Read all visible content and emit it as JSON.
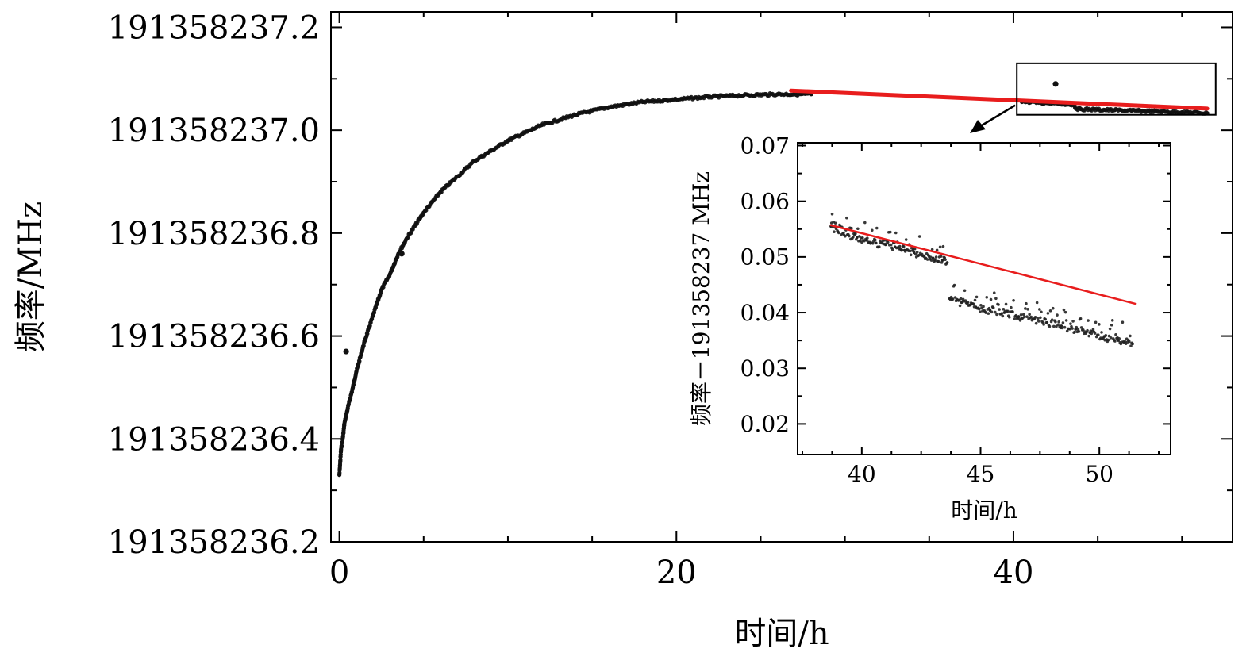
{
  "chart_data": [
    {
      "type": "scatter",
      "xlabel": "时间/h",
      "ylabel": "频率/MHz",
      "xlim": [
        -0.5,
        53
      ],
      "ylim": [
        191358236.2,
        191358237.23
      ],
      "x_ticks": [
        0,
        20,
        40
      ],
      "x_tick_labels": [
        "0",
        "20",
        "40"
      ],
      "y_ticks": [
        191358236.2,
        191358236.4,
        191358236.6,
        191358236.8,
        191358237.0,
        191358237.2
      ],
      "y_tick_labels": [
        "191358236.2",
        "191358236.4",
        "191358236.6",
        "191358236.8",
        "191358237.0",
        "191358237.2"
      ],
      "series": [
        {
          "color": "#111111",
          "x": [
            0.0,
            0.1,
            0.2,
            0.3,
            0.5,
            0.8,
            1.0,
            1.5,
            2.0,
            2.5,
            3.0,
            3.5,
            4.0,
            5.0,
            6.0,
            7.0,
            8.0,
            9.0,
            10.0,
            12.0,
            14.0,
            16.0,
            18.0,
            20.0,
            22.0,
            24.0,
            26.0,
            28.0
          ],
          "y": [
            191358236.33,
            191358236.38,
            191358236.4,
            191358236.43,
            191358236.46,
            191358236.5,
            191358236.53,
            191358236.59,
            191358236.64,
            191358236.69,
            191358236.72,
            191358236.76,
            191358236.79,
            191358236.84,
            191358236.88,
            191358236.91,
            191358236.94,
            191358236.96,
            191358236.98,
            191358237.01,
            191358237.03,
            191358237.045,
            191358237.055,
            191358237.06,
            191358237.065,
            191358237.068,
            191358237.07,
            191358237.07
          ]
        },
        {
          "color": "#111111",
          "x": [
            0.4,
            3.7
          ],
          "y": [
            191358236.57,
            191358236.76
          ]
        },
        {
          "color": "#111111",
          "x": [
            40.5,
            41.0,
            42.0,
            43.0,
            43.6,
            43.7,
            44.0,
            45.0,
            46.0,
            47.0,
            48.0,
            49.0,
            50.0,
            51.0,
            51.5
          ],
          "y": [
            191358237.055,
            191358237.054,
            191358237.053,
            191358237.051,
            191358237.05,
            191358237.042,
            191358237.041,
            191358237.04,
            191358237.039,
            191358237.038,
            191358237.037,
            191358237.036,
            191358237.035,
            191358237.034,
            191358237.033
          ]
        },
        {
          "color": "#111111",
          "x": [
            42.5
          ],
          "y": [
            191358237.09
          ]
        }
      ],
      "fit_line": {
        "color": "#e81d1d",
        "x": [
          26.8,
          51.5
        ],
        "y": [
          191358237.077,
          191358237.042
        ]
      },
      "annotation": {
        "box_x": [
          40.2,
          52.0
        ],
        "box_y": [
          191358237.03,
          191358237.13
        ]
      }
    },
    {
      "type": "scatter",
      "xlabel": "时间/h",
      "ylabel": "频率－191358237 MHz",
      "xlim": [
        37.3,
        53
      ],
      "ylim": [
        0.0145,
        0.0705
      ],
      "x_ticks": [
        40,
        45,
        50
      ],
      "x_tick_labels": [
        "40",
        "45",
        "50"
      ],
      "y_ticks": [
        0.02,
        0.03,
        0.04,
        0.05,
        0.06,
        0.07
      ],
      "y_tick_labels": [
        "0.02",
        "0.03",
        "0.04",
        "0.05",
        "0.06",
        "0.07"
      ],
      "series": [
        {
          "color": "#222222",
          "x": [
            38.7,
            39.0,
            39.4,
            39.8,
            40.2,
            40.6,
            41.0,
            41.4,
            41.8,
            42.2,
            42.6,
            43.0,
            43.4,
            43.6
          ],
          "y": [
            0.0555,
            0.0545,
            0.054,
            0.0535,
            0.053,
            0.0525,
            0.0522,
            0.0518,
            0.0512,
            0.0508,
            0.0502,
            0.0498,
            0.0494,
            0.049
          ]
        },
        {
          "color": "#222222",
          "x": [
            43.7,
            44.2,
            44.8,
            45.4,
            46.0,
            46.6,
            47.2,
            47.8,
            48.4,
            49.0,
            49.6,
            50.2,
            50.8,
            51.4
          ],
          "y": [
            0.0425,
            0.0418,
            0.041,
            0.0404,
            0.04,
            0.0393,
            0.0388,
            0.0382,
            0.0376,
            0.037,
            0.0364,
            0.0357,
            0.035,
            0.0344
          ]
        }
      ],
      "fit_line": {
        "color": "#e81d1d",
        "x": [
          38.7,
          51.5
        ],
        "y": [
          0.0557,
          0.0416
        ]
      }
    }
  ]
}
